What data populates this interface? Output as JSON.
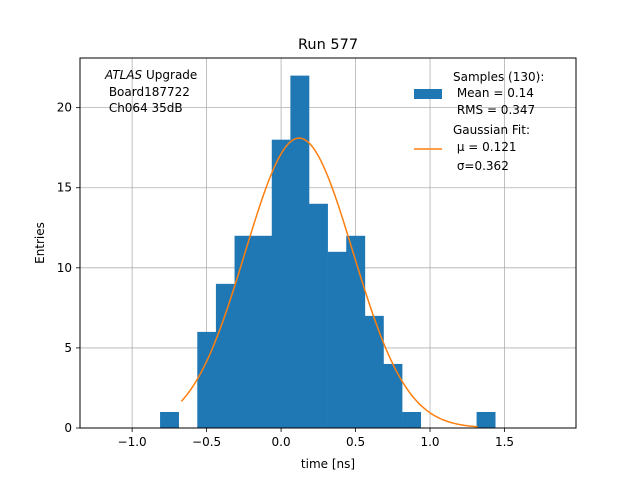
{
  "chart_data": {
    "type": "bar",
    "title": "Run 577",
    "xlabel": "time [ns]",
    "ylabel": "Entries",
    "xlim": [
      -1.35,
      1.98
    ],
    "ylim": [
      0,
      23.1
    ],
    "grid": true,
    "bin_width": 0.125,
    "bins": [
      {
        "x": -0.75,
        "count": 1
      },
      {
        "x": -0.5,
        "count": 6
      },
      {
        "x": -0.375,
        "count": 9
      },
      {
        "x": -0.25,
        "count": 12
      },
      {
        "x": -0.125,
        "count": 12
      },
      {
        "x": 0.0,
        "count": 18
      },
      {
        "x": 0.125,
        "count": 22
      },
      {
        "x": 0.25,
        "count": 14
      },
      {
        "x": 0.375,
        "count": 11
      },
      {
        "x": 0.5,
        "count": 12
      },
      {
        "x": 0.625,
        "count": 7
      },
      {
        "x": 0.75,
        "count": 4
      },
      {
        "x": 0.875,
        "count": 1
      },
      {
        "x": 1.375,
        "count": 1
      }
    ],
    "fit": {
      "amplitude": 18.1,
      "mu": 0.121,
      "sigma": 0.362,
      "x_range": [
        -0.67,
        1.32
      ]
    },
    "x_ticks": [
      {
        "value": -1.0,
        "label": "−1.0"
      },
      {
        "value": -0.5,
        "label": "−0.5"
      },
      {
        "value": 0.0,
        "label": "0.0"
      },
      {
        "value": 0.5,
        "label": "0.5"
      },
      {
        "value": 1.0,
        "label": "1.0"
      },
      {
        "value": 1.5,
        "label": "1.5"
      }
    ],
    "y_ticks": [
      {
        "value": 0,
        "label": "0"
      },
      {
        "value": 5,
        "label": "5"
      },
      {
        "value": 10,
        "label": "10"
      },
      {
        "value": 15,
        "label": "15"
      },
      {
        "value": 20,
        "label": "20"
      }
    ],
    "annotation": {
      "line1_italic": "ATLAS",
      "line1_rest": " Upgrade",
      "line2": " Board187722",
      "line3": " Ch064 35dB"
    },
    "legend": {
      "placement": "top-right",
      "samples": {
        "line1": "Samples (130):",
        "line2": " Mean = 0.14",
        "line3": " RMS = 0.347"
      },
      "fit": {
        "line1": "Gaussian Fit:",
        "line2": " μ = 0.121",
        "line3": " σ=0.362"
      }
    },
    "colors": {
      "bars": "#1f77b4",
      "fit": "#ff7f0e",
      "grid": "#b0b0b0"
    }
  }
}
